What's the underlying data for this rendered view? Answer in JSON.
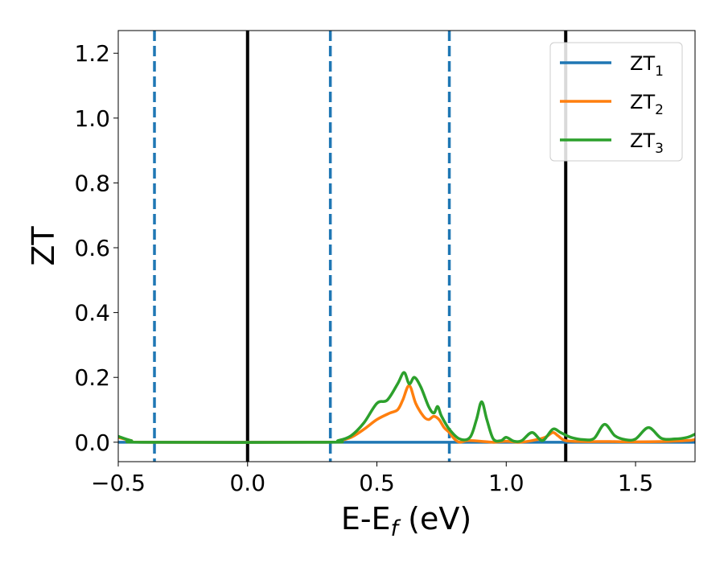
{
  "chart_data": {
    "type": "line",
    "xlabel": "E-E",
    "xlabel_subscript": "f",
    "xlabel_unit": " (eV)",
    "ylabel": "ZT",
    "xlim": [
      -0.5,
      1.73
    ],
    "ylim": [
      -0.06,
      1.27
    ],
    "xticks": [
      -0.5,
      0.0,
      0.5,
      1.0,
      1.5
    ],
    "xtick_labels": [
      "−0.5",
      "0.0",
      "0.5",
      "1.0",
      "1.5"
    ],
    "yticks": [
      0.0,
      0.2,
      0.4,
      0.6,
      0.8,
      1.0,
      1.2
    ],
    "ytick_labels": [
      "0.0",
      "0.2",
      "0.4",
      "0.6",
      "0.8",
      "1.0",
      "1.2"
    ],
    "grid": false,
    "legend_position": "top-right",
    "vlines": [
      {
        "x": -0.36,
        "style": "dashed",
        "color": "#1f77b4"
      },
      {
        "x": 0.0,
        "style": "solid",
        "color": "#000000"
      },
      {
        "x": 0.32,
        "style": "dashed",
        "color": "#1f77b4"
      },
      {
        "x": 0.78,
        "style": "dashed",
        "color": "#1f77b4"
      },
      {
        "x": 1.23,
        "style": "solid",
        "color": "#000000"
      }
    ],
    "series": [
      {
        "name": "ZT",
        "sub": "1",
        "color": "#1f77b4",
        "points": [
          [
            -0.5,
            0.0
          ],
          [
            1.73,
            0.0
          ]
        ]
      },
      {
        "name": "ZT",
        "sub": "2",
        "color": "#ff7f0e",
        "points": [
          [
            -0.5,
            0.015
          ],
          [
            -0.45,
            0.005
          ],
          [
            -0.4,
            0.0
          ],
          [
            0.3,
            0.0
          ],
          [
            0.35,
            0.004
          ],
          [
            0.4,
            0.015
          ],
          [
            0.45,
            0.04
          ],
          [
            0.5,
            0.07
          ],
          [
            0.55,
            0.09
          ],
          [
            0.58,
            0.1
          ],
          [
            0.6,
            0.13
          ],
          [
            0.625,
            0.175
          ],
          [
            0.65,
            0.12
          ],
          [
            0.68,
            0.08
          ],
          [
            0.7,
            0.07
          ],
          [
            0.72,
            0.08
          ],
          [
            0.74,
            0.07
          ],
          [
            0.76,
            0.045
          ],
          [
            0.78,
            0.03
          ],
          [
            0.8,
            0.01
          ],
          [
            0.82,
            0.0
          ],
          [
            0.85,
            0.005
          ],
          [
            0.9,
            0.003
          ],
          [
            0.95,
            0.0
          ],
          [
            1.0,
            0.003
          ],
          [
            1.05,
            0.0
          ],
          [
            1.1,
            0.005
          ],
          [
            1.15,
            0.015
          ],
          [
            1.18,
            0.03
          ],
          [
            1.2,
            0.02
          ],
          [
            1.23,
            0.005
          ],
          [
            1.3,
            0.002
          ],
          [
            1.4,
            0.002
          ],
          [
            1.5,
            0.001
          ],
          [
            1.6,
            0.002
          ],
          [
            1.7,
            0.005
          ],
          [
            1.73,
            0.008
          ]
        ]
      },
      {
        "name": "ZT",
        "sub": "3",
        "color": "#2ca02c",
        "points": [
          [
            -0.5,
            0.018
          ],
          [
            -0.45,
            0.005
          ],
          [
            -0.4,
            0.0
          ],
          [
            0.3,
            0.0
          ],
          [
            0.35,
            0.005
          ],
          [
            0.4,
            0.02
          ],
          [
            0.45,
            0.06
          ],
          [
            0.5,
            0.12
          ],
          [
            0.54,
            0.13
          ],
          [
            0.58,
            0.18
          ],
          [
            0.605,
            0.215
          ],
          [
            0.625,
            0.18
          ],
          [
            0.645,
            0.2
          ],
          [
            0.67,
            0.17
          ],
          [
            0.7,
            0.11
          ],
          [
            0.72,
            0.09
          ],
          [
            0.735,
            0.11
          ],
          [
            0.75,
            0.08
          ],
          [
            0.78,
            0.04
          ],
          [
            0.82,
            0.01
          ],
          [
            0.86,
            0.015
          ],
          [
            0.885,
            0.07
          ],
          [
            0.905,
            0.125
          ],
          [
            0.925,
            0.07
          ],
          [
            0.95,
            0.01
          ],
          [
            0.98,
            0.005
          ],
          [
            1.0,
            0.015
          ],
          [
            1.03,
            0.003
          ],
          [
            1.06,
            0.005
          ],
          [
            1.1,
            0.03
          ],
          [
            1.14,
            0.005
          ],
          [
            1.18,
            0.04
          ],
          [
            1.21,
            0.03
          ],
          [
            1.25,
            0.015
          ],
          [
            1.3,
            0.008
          ],
          [
            1.34,
            0.012
          ],
          [
            1.38,
            0.055
          ],
          [
            1.42,
            0.02
          ],
          [
            1.46,
            0.008
          ],
          [
            1.5,
            0.01
          ],
          [
            1.55,
            0.045
          ],
          [
            1.6,
            0.012
          ],
          [
            1.65,
            0.01
          ],
          [
            1.7,
            0.015
          ],
          [
            1.73,
            0.025
          ]
        ]
      }
    ]
  }
}
